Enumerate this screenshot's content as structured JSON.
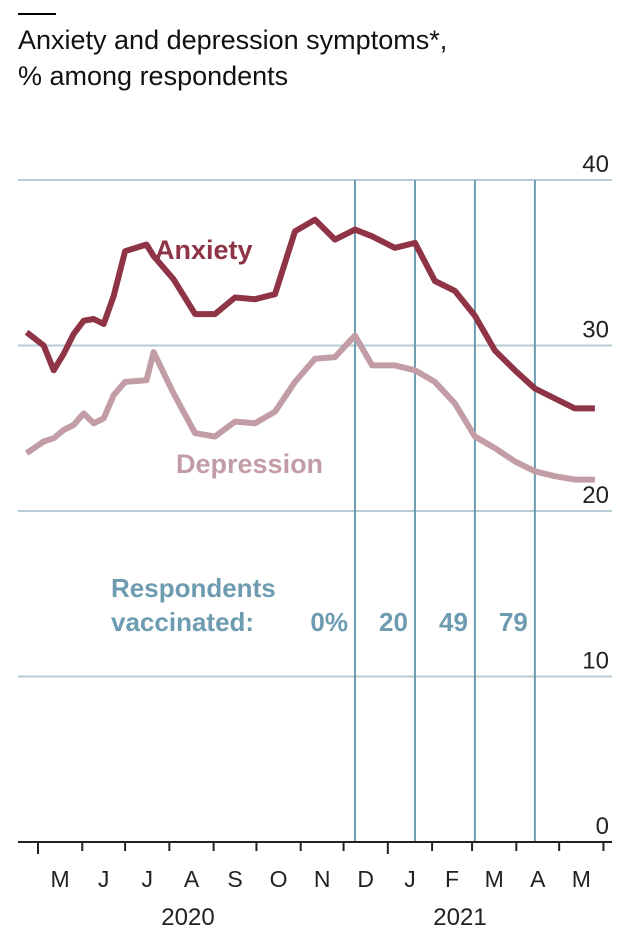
{
  "title_line1": "Anxiety and depression symptoms*,",
  "title_line2": "% among respondents",
  "colors": {
    "anxiety": "#8e3446",
    "depression": "#c29da6",
    "gridline": "#b8ccd6",
    "vaccination": "#6d9cb1",
    "axis": "#222222"
  },
  "chart_data": {
    "type": "line",
    "xlabel": "",
    "ylabel": "",
    "ylim": [
      0,
      40
    ],
    "y_ticks": [
      "0",
      "10",
      "20",
      "30",
      "40"
    ],
    "x_ticks": [
      "M",
      "J",
      "J",
      "A",
      "S",
      "O",
      "N",
      "D",
      "J",
      "F",
      "M",
      "A",
      "M"
    ],
    "year_labels": [
      "2020",
      "2021"
    ],
    "grid": true,
    "series": [
      {
        "name": "Anxiety",
        "x": [
          "2020-04-23",
          "2020-05-05",
          "2020-05-12",
          "2020-05-19",
          "2020-05-26",
          "2020-06-02",
          "2020-06-09",
          "2020-06-16",
          "2020-06-23",
          "2020-07-01",
          "2020-07-16",
          "2020-07-21",
          "2020-08-04",
          "2020-08-19",
          "2020-09-02",
          "2020-09-16",
          "2020-09-30",
          "2020-10-14",
          "2020-10-28",
          "2020-11-11",
          "2020-11-25",
          "2020-12-09",
          "2020-12-21",
          "2021-01-06",
          "2021-01-20",
          "2021-02-03",
          "2021-02-17",
          "2021-03-03",
          "2021-03-17",
          "2021-03-31",
          "2021-04-14",
          "2021-04-28",
          "2021-05-12",
          "2021-05-26"
        ],
        "values": [
          30.8,
          30.0,
          28.5,
          29.5,
          30.7,
          31.5,
          31.6,
          31.3,
          33.0,
          35.7,
          36.1,
          35.4,
          34.0,
          31.9,
          31.9,
          32.9,
          32.8,
          33.1,
          36.9,
          37.6,
          36.4,
          37.0,
          36.6,
          35.9,
          36.2,
          33.9,
          33.3,
          31.8,
          29.7,
          28.5,
          27.4,
          26.8,
          26.2,
          26.2
        ],
        "color": "#8e3446"
      },
      {
        "name": "Depression",
        "x": [
          "2020-04-23",
          "2020-05-05",
          "2020-05-12",
          "2020-05-19",
          "2020-05-26",
          "2020-06-02",
          "2020-06-09",
          "2020-06-16",
          "2020-06-23",
          "2020-07-01",
          "2020-07-16",
          "2020-07-21",
          "2020-08-04",
          "2020-08-19",
          "2020-09-02",
          "2020-09-16",
          "2020-09-30",
          "2020-10-14",
          "2020-10-28",
          "2020-11-11",
          "2020-11-25",
          "2020-12-09",
          "2020-12-21",
          "2021-01-06",
          "2021-01-20",
          "2021-02-03",
          "2021-02-17",
          "2021-03-03",
          "2021-03-17",
          "2021-03-31",
          "2021-04-14",
          "2021-04-28",
          "2021-05-12",
          "2021-05-26"
        ],
        "values": [
          23.5,
          24.2,
          24.4,
          24.9,
          25.2,
          25.9,
          25.3,
          25.6,
          27.0,
          27.8,
          27.9,
          29.6,
          27.1,
          24.7,
          24.5,
          25.4,
          25.3,
          26.0,
          27.8,
          29.2,
          29.3,
          30.6,
          28.8,
          28.8,
          28.5,
          27.8,
          26.5,
          24.5,
          23.8,
          23.0,
          22.4,
          22.1,
          21.9,
          21.9
        ],
        "color": "#c29da6"
      }
    ],
    "annotations": {
      "vaccination_header_line1": "Respondents",
      "vaccination_header_line2": "vaccinated:",
      "vaccination_markers": [
        {
          "date": "2020-12-09",
          "label": "0%"
        },
        {
          "date": "2021-01-20",
          "label": "20"
        },
        {
          "date": "2021-03-03",
          "label": "49"
        },
        {
          "date": "2021-04-14",
          "label": "79"
        }
      ]
    }
  }
}
